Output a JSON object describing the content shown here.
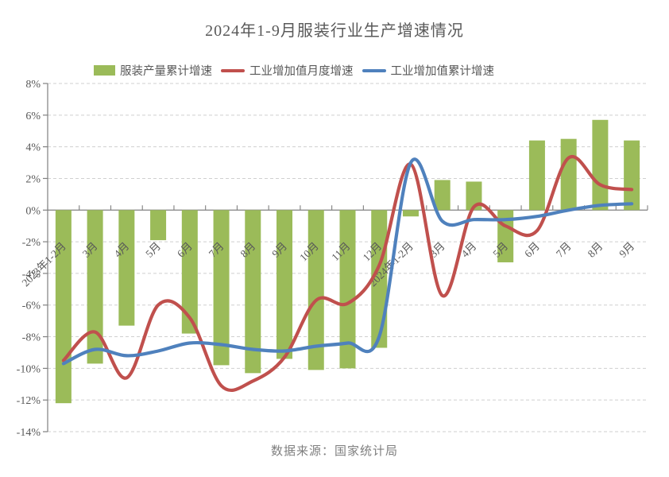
{
  "title": "2024年1-9月服装行业生产增速情况",
  "source_note": "数据来源：国家统计局",
  "legend": [
    {
      "label": "服装产量累计增速",
      "type": "bar",
      "color": "#9BBB59"
    },
    {
      "label": "工业增加值月度增速",
      "type": "line",
      "color": "#C0504D"
    },
    {
      "label": "工业增加值累计增速",
      "type": "line",
      "color": "#4F81BD"
    }
  ],
  "colors": {
    "bar_green": "#9BBB59",
    "line_red": "#C0504D",
    "line_blue": "#4F81BD",
    "text_gray": "#595959",
    "axis_gray": "#808080",
    "gridline_gray": "#CFCFCF",
    "source_gray": "#7F7F7F",
    "background": "#FFFFFF"
  },
  "chart_data": {
    "type": "bar",
    "subtype": "bar + smoothed line combo",
    "title": "2024年1-9月服装行业生产增速情况",
    "categories": [
      "2023年1-2月",
      "3月",
      "4月",
      "5月",
      "6月",
      "7月",
      "8月",
      "9月",
      "10月",
      "11月",
      "12月",
      "2024年1-2月",
      "3月",
      "4月",
      "5月",
      "6月",
      "7月",
      "8月",
      "9月"
    ],
    "series": [
      {
        "name": "服装产量累计增速",
        "type": "bar",
        "color": "#9BBB59",
        "values": [
          -12.2,
          -9.7,
          -7.3,
          -1.9,
          -7.8,
          -9.8,
          -10.3,
          -9.4,
          -10.1,
          -10.0,
          -8.7,
          -0.4,
          1.9,
          1.8,
          -3.3,
          4.4,
          4.5,
          5.7,
          4.4
        ]
      },
      {
        "name": "工业增加值月度增速",
        "type": "line",
        "color": "#C0504D",
        "smooth": true,
        "values": [
          -9.5,
          -7.7,
          -10.6,
          -6.0,
          -6.8,
          -11.1,
          -10.8,
          -9.3,
          -5.7,
          -5.9,
          -3.5,
          2.9,
          -5.4,
          0.2,
          -1.0,
          -1.3,
          3.3,
          1.6,
          1.3
        ]
      },
      {
        "name": "工业增加值累计增速",
        "type": "line",
        "color": "#4F81BD",
        "smooth": true,
        "values": [
          -9.7,
          -8.8,
          -9.2,
          -8.9,
          -8.4,
          -8.5,
          -8.8,
          -8.9,
          -8.6,
          -8.4,
          -8.0,
          3.0,
          -0.7,
          -0.6,
          -0.6,
          -0.4,
          0.0,
          0.3,
          0.4
        ]
      }
    ],
    "xlabel": "",
    "ylabel": "",
    "y_axis": {
      "min": -14,
      "max": 8,
      "step": 2,
      "unit": "%",
      "tick_labels": [
        "8%",
        "6%",
        "4%",
        "2%",
        "0%",
        "-2%",
        "-4%",
        "-6%",
        "-8%",
        "-10%",
        "-12%",
        "-14%"
      ]
    },
    "x_axis": {
      "label_rotation_deg": 45,
      "labels_below_zero_line": true
    },
    "grid": "horizontal dashed",
    "legend_position": "top",
    "source_note": "数据来源：国家统计局"
  }
}
